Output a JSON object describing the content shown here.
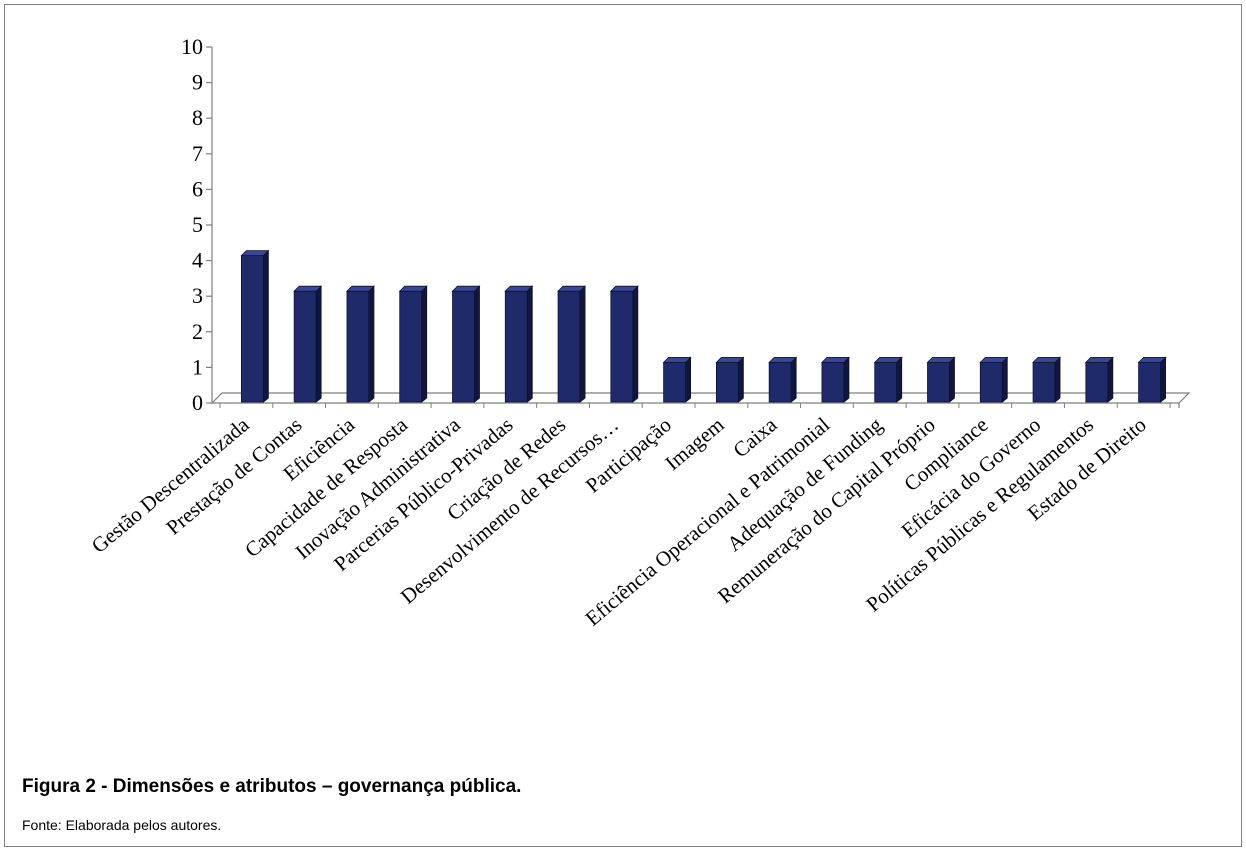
{
  "chart_data": {
    "type": "bar",
    "categories": [
      "Gestão Descentralizada",
      "Prestação de Contas",
      "Eficiência",
      "Capacidade de Resposta",
      "Inovação Administrativa",
      "Parcerias Público-Privadas",
      "Criação de Redes",
      "Desenvolvimento de Recursos…",
      "Participação",
      "Imagem",
      "Caixa",
      "Eficiência Operacional e Patrimonial",
      "Adequação de Funding",
      "Remuneração do Capital Próprio",
      "Compliance",
      "Eficácia do Governo",
      "Políticas Públicas e Regulamentos",
      "Estado de Direito"
    ],
    "values": [
      4,
      3,
      3,
      3,
      3,
      3,
      3,
      3,
      1,
      1,
      1,
      1,
      1,
      1,
      1,
      1,
      1,
      1
    ],
    "ylim": [
      0,
      10
    ],
    "yticks": [
      0,
      1,
      2,
      3,
      4,
      5,
      6,
      7,
      8,
      9,
      10
    ],
    "grid": false,
    "style": "3d-column",
    "bar_color": "#1f2a6b"
  },
  "caption": "Figura 2 - Dimensões e atributos – governança pública.",
  "source": "Fonte: Elaborada pelos autores."
}
